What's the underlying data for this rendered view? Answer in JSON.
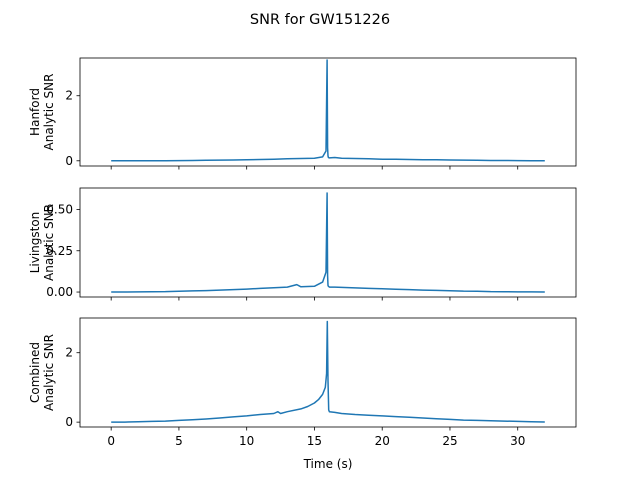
{
  "figure": {
    "title": "SNR for GW151226",
    "shared_xlabel": "Time (s)",
    "line_color": "#1f77b4"
  },
  "chart_data": [
    {
      "type": "line",
      "panel": "hanford",
      "title": "",
      "ylabel": [
        "Hanford",
        "Analytic SNR"
      ],
      "xlim": [
        -2.3,
        34.3
      ],
      "ylim": [
        -0.16,
        3.16
      ],
      "yticks": [
        0,
        2
      ],
      "xticks": [
        0,
        5,
        10,
        15,
        20,
        25,
        30
      ],
      "show_xticklabels": false,
      "series": [
        {
          "x": [
            0,
            1,
            2,
            3,
            4,
            5,
            6,
            7,
            8,
            9,
            10,
            11,
            12,
            13,
            14,
            15,
            15.6,
            15.85,
            15.93,
            15.97,
            16.0,
            16.03,
            16.1,
            16.5,
            17,
            18,
            19,
            20,
            21,
            22,
            23,
            24,
            25,
            26,
            27,
            28,
            29,
            30,
            31,
            32
          ],
          "y": [
            0.0,
            0.0,
            0.0,
            0.0,
            0.0,
            0.005,
            0.01,
            0.015,
            0.02,
            0.025,
            0.03,
            0.04,
            0.05,
            0.06,
            0.07,
            0.08,
            0.12,
            0.3,
            3.1,
            0.4,
            0.15,
            0.1,
            0.09,
            0.1,
            0.08,
            0.07,
            0.06,
            0.05,
            0.045,
            0.04,
            0.035,
            0.03,
            0.025,
            0.02,
            0.015,
            0.01,
            0.008,
            0.005,
            0.003,
            0.002
          ]
        }
      ]
    },
    {
      "type": "line",
      "panel": "livingston",
      "title": "",
      "ylabel": [
        "Livingston",
        "Analytic SNR"
      ],
      "xlim": [
        -2.3,
        34.3
      ],
      "ylim": [
        -0.03,
        0.63
      ],
      "yticks": [
        0.0,
        0.25,
        0.5
      ],
      "yticklabels": [
        "0.00",
        "0.25",
        "0.50"
      ],
      "xticks": [
        0,
        5,
        10,
        15,
        20,
        25,
        30
      ],
      "show_xticklabels": false,
      "series": [
        {
          "x": [
            0,
            1,
            2,
            3,
            4,
            5,
            6,
            7,
            8,
            9,
            10,
            11,
            12,
            13,
            13.7,
            14,
            15,
            15.6,
            15.85,
            15.93,
            15.97,
            16.0,
            16.03,
            16.1,
            16.5,
            17,
            18,
            19,
            20,
            21,
            22,
            23,
            24,
            25,
            26,
            27,
            28,
            29,
            30,
            31,
            32
          ],
          "y": [
            0.0,
            0.0,
            0.001,
            0.002,
            0.003,
            0.005,
            0.007,
            0.009,
            0.012,
            0.015,
            0.018,
            0.022,
            0.026,
            0.03,
            0.045,
            0.032,
            0.035,
            0.06,
            0.12,
            0.6,
            0.1,
            0.04,
            0.035,
            0.03,
            0.03,
            0.028,
            0.025,
            0.022,
            0.02,
            0.017,
            0.015,
            0.012,
            0.01,
            0.008,
            0.006,
            0.005,
            0.003,
            0.002,
            0.001,
            0.001,
            0.0
          ]
        }
      ]
    },
    {
      "type": "line",
      "panel": "combined",
      "title": "",
      "ylabel": [
        "Combined",
        "Analytic SNR"
      ],
      "xlabel": "Time (s)",
      "xlim": [
        -2.3,
        34.3
      ],
      "ylim": [
        -0.14,
        3.0
      ],
      "yticks": [
        0,
        2
      ],
      "xticks": [
        0,
        5,
        10,
        15,
        20,
        25,
        30
      ],
      "show_xticklabels": true,
      "series": [
        {
          "x": [
            0,
            1,
            2,
            3,
            4,
            5,
            6,
            7,
            8,
            9,
            10,
            11,
            12,
            12.3,
            12.5,
            13,
            14,
            14.5,
            15,
            15.3,
            15.6,
            15.8,
            15.9,
            15.95,
            16.0,
            16.05,
            16.1,
            16.5,
            17,
            18,
            19,
            20,
            21,
            22,
            23,
            24,
            25,
            26,
            27,
            28,
            29,
            30,
            31,
            32
          ],
          "y": [
            0.0,
            0.0,
            0.01,
            0.02,
            0.03,
            0.05,
            0.07,
            0.09,
            0.12,
            0.15,
            0.18,
            0.22,
            0.25,
            0.3,
            0.25,
            0.3,
            0.38,
            0.45,
            0.55,
            0.65,
            0.8,
            1.0,
            1.4,
            2.9,
            1.2,
            0.35,
            0.3,
            0.28,
            0.25,
            0.22,
            0.2,
            0.18,
            0.16,
            0.14,
            0.12,
            0.1,
            0.08,
            0.06,
            0.05,
            0.04,
            0.03,
            0.02,
            0.01,
            0.005
          ]
        }
      ]
    }
  ]
}
